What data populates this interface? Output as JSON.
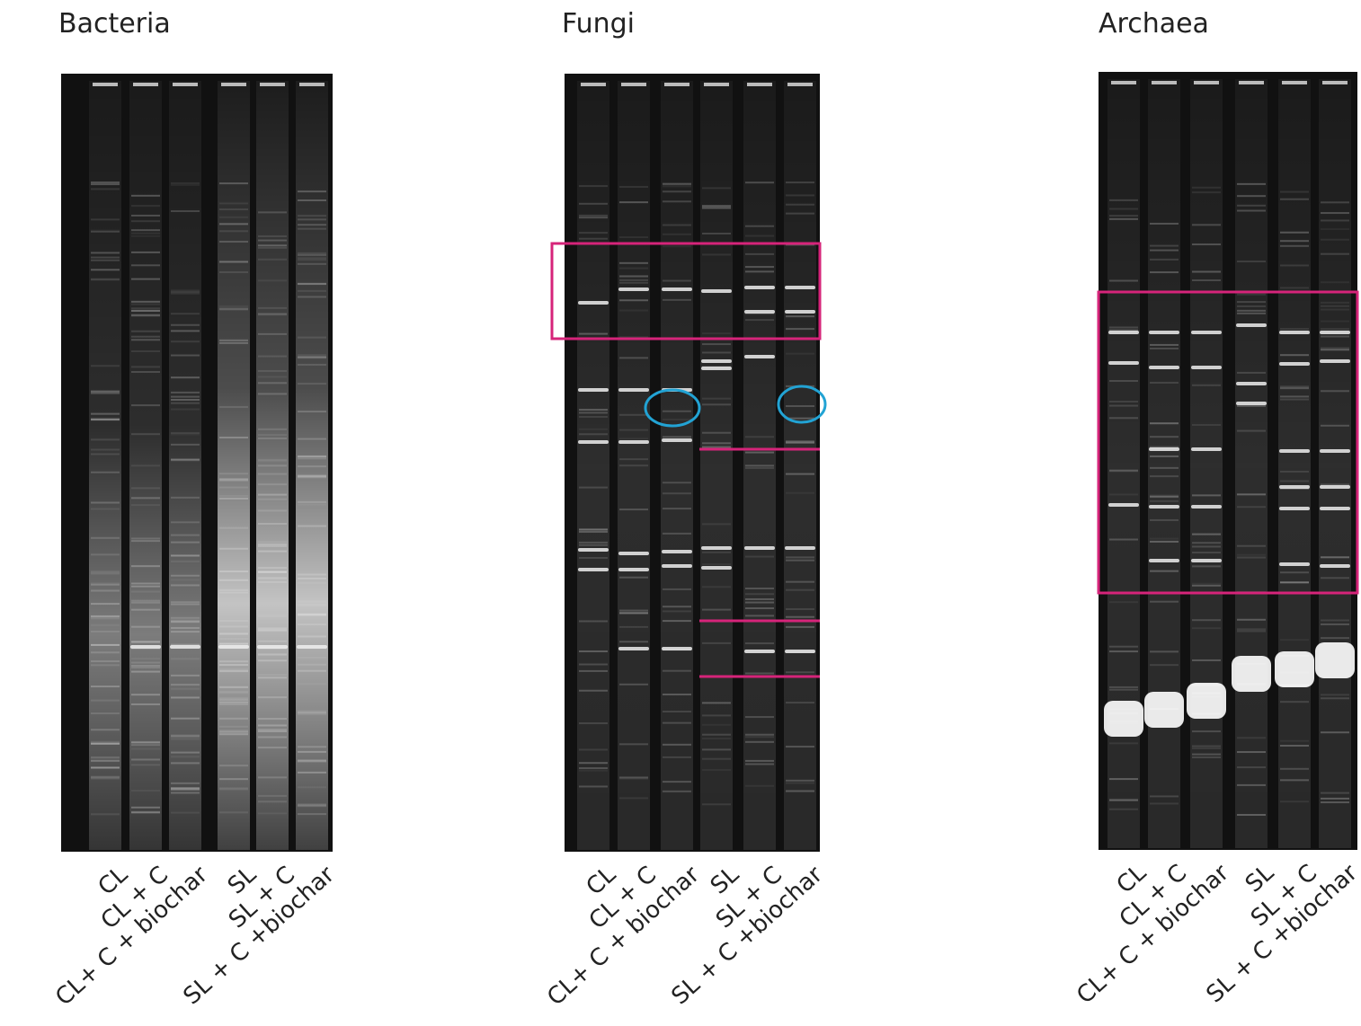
{
  "panels": [
    {
      "title": "Bacteria",
      "lanes": [
        "CL",
        "CL + C",
        "CL+ C + biochar",
        "SL",
        "SL + C",
        "SL + C +biochar"
      ]
    },
    {
      "title": "Fungi",
      "lanes": [
        "CL",
        "CL + C",
        "CL+ C + biochar",
        "SL",
        "SL + C",
        "SL + C +biochar"
      ]
    },
    {
      "title": "Archaea",
      "lanes": [
        "CL",
        "CL + C",
        "CL+ C + biochar",
        "SL",
        "SL + C",
        "SL + C +biochar"
      ]
    }
  ]
}
